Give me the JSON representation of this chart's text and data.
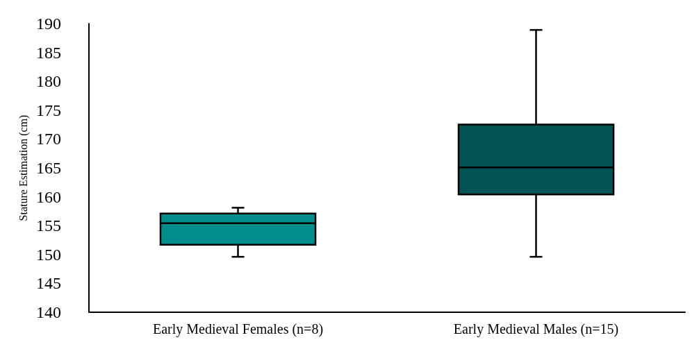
{
  "chart_data": {
    "type": "box",
    "ylabel": "Stature Estimation (cm)",
    "categories": [
      "Early Medieval Females (n=8)",
      "Early Medieval Males (n=15)"
    ],
    "boxes": [
      {
        "low": 149.6,
        "q1": 151.7,
        "median": 155.4,
        "q3": 157.1,
        "high": 158.1
      },
      {
        "low": 149.6,
        "q1": 160.4,
        "median": 165.1,
        "q3": 172.5,
        "high": 188.9
      }
    ],
    "colors": [
      "#038c8c",
      "#035353"
    ],
    "ylim": [
      140,
      190
    ],
    "yticks": [
      140,
      145,
      150,
      155,
      160,
      165,
      170,
      175,
      180,
      185,
      190
    ]
  }
}
